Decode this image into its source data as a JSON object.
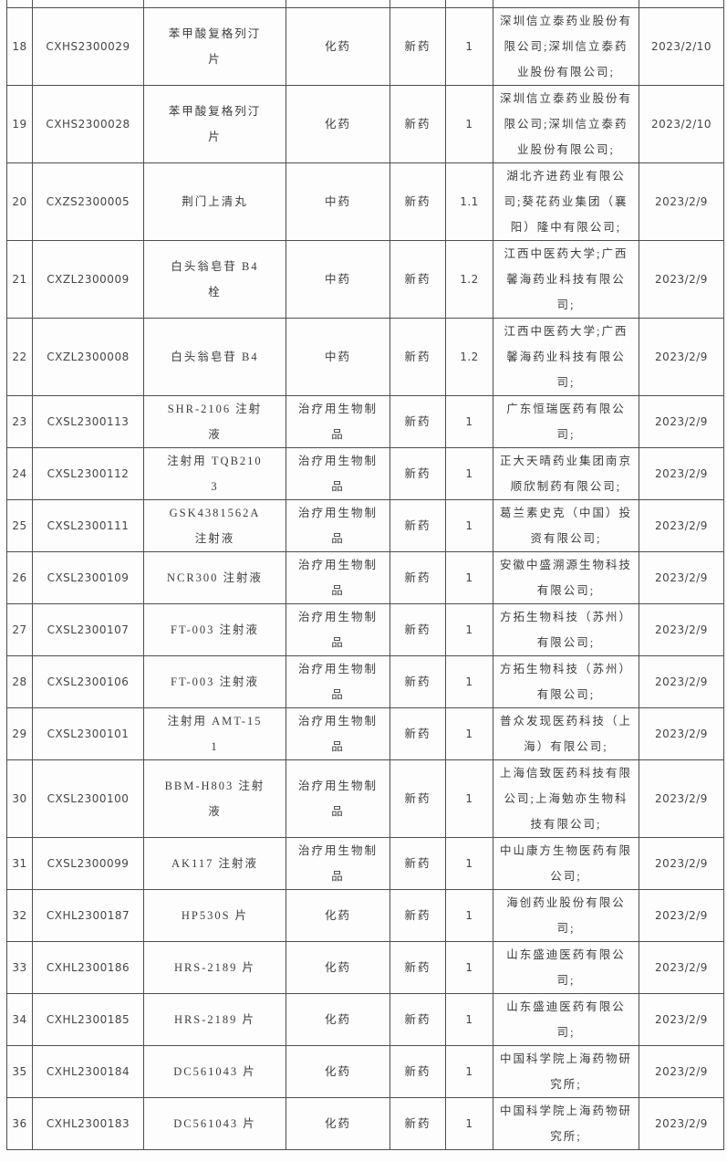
{
  "table": {
    "column_keys": [
      "seq",
      "acceptance_no",
      "drug_name",
      "drug_type",
      "application_type",
      "reg_class",
      "applicant",
      "date"
    ],
    "rows": [
      {
        "seq": "18",
        "acceptance_no": "CXHS2300029",
        "drug_name": "苯甲酸复格列汀片",
        "drug_type": "化药",
        "application_type": "新药",
        "reg_class": "1",
        "applicant": "深圳信立泰药业股份有限公司;深圳信立泰药业股份有限公司;",
        "date": "2023/2/10"
      },
      {
        "seq": "19",
        "acceptance_no": "CXHS2300028",
        "drug_name": "苯甲酸复格列汀片",
        "drug_type": "化药",
        "application_type": "新药",
        "reg_class": "1",
        "applicant": "深圳信立泰药业股份有限公司;深圳信立泰药业股份有限公司;",
        "date": "2023/2/10"
      },
      {
        "seq": "20",
        "acceptance_no": "CXZS2300005",
        "drug_name": "荆门上清丸",
        "drug_type": "中药",
        "application_type": "新药",
        "reg_class": "1.1",
        "applicant": "湖北齐进药业有限公司;葵花药业集团（襄阳）隆中有限公司;",
        "date": "2023/2/9"
      },
      {
        "seq": "21",
        "acceptance_no": "CXZL2300009",
        "drug_name": "白头翁皂苷 B4 栓",
        "drug_type": "中药",
        "application_type": "新药",
        "reg_class": "1.2",
        "applicant": "江西中医药大学;广西馨海药业科技有限公司;",
        "date": "2023/2/9"
      },
      {
        "seq": "22",
        "acceptance_no": "CXZL2300008",
        "drug_name": "白头翁皂苷 B4",
        "drug_type": "中药",
        "application_type": "新药",
        "reg_class": "1.2",
        "applicant": "江西中医药大学;广西馨海药业科技有限公司;",
        "date": "2023/2/9"
      },
      {
        "seq": "23",
        "acceptance_no": "CXSL2300113",
        "drug_name": "SHR-2106 注射液",
        "drug_type": "治疗用生物制品",
        "application_type": "新药",
        "reg_class": "1",
        "applicant": "广东恒瑞医药有限公司;",
        "date": "2023/2/9"
      },
      {
        "seq": "24",
        "acceptance_no": "CXSL2300112",
        "drug_name": "注射用 TQB2103",
        "drug_type": "治疗用生物制品",
        "application_type": "新药",
        "reg_class": "1",
        "applicant": "正大天晴药业集团南京顺欣制药有限公司;",
        "date": "2023/2/9"
      },
      {
        "seq": "25",
        "acceptance_no": "CXSL2300111",
        "drug_name": "GSK4381562A 注射液",
        "drug_type": "治疗用生物制品",
        "application_type": "新药",
        "reg_class": "1",
        "applicant": "葛兰素史克（中国）投资有限公司;",
        "date": "2023/2/9"
      },
      {
        "seq": "26",
        "acceptance_no": "CXSL2300109",
        "drug_name": "NCR300 注射液",
        "drug_type": "治疗用生物制品",
        "application_type": "新药",
        "reg_class": "1",
        "applicant": "安徽中盛溯源生物科技有限公司;",
        "date": "2023/2/9"
      },
      {
        "seq": "27",
        "acceptance_no": "CXSL2300107",
        "drug_name": "FT-003 注射液",
        "drug_type": "治疗用生物制品",
        "application_type": "新药",
        "reg_class": "1",
        "applicant": "方拓生物科技（苏州）有限公司;",
        "date": "2023/2/9"
      },
      {
        "seq": "28",
        "acceptance_no": "CXSL2300106",
        "drug_name": "FT-003 注射液",
        "drug_type": "治疗用生物制品",
        "application_type": "新药",
        "reg_class": "1",
        "applicant": "方拓生物科技（苏州）有限公司;",
        "date": "2023/2/9"
      },
      {
        "seq": "29",
        "acceptance_no": "CXSL2300101",
        "drug_name": "注射用 AMT-151",
        "drug_type": "治疗用生物制品",
        "application_type": "新药",
        "reg_class": "1",
        "applicant": "普众发现医药科技（上海）有限公司;",
        "date": "2023/2/9"
      },
      {
        "seq": "30",
        "acceptance_no": "CXSL2300100",
        "drug_name": "BBM-H803 注射液",
        "drug_type": "治疗用生物制品",
        "application_type": "新药",
        "reg_class": "1",
        "applicant": "上海信致医药科技有限公司;上海勉亦生物科技有限公司;",
        "date": "2023/2/9"
      },
      {
        "seq": "31",
        "acceptance_no": "CXSL2300099",
        "drug_name": "AK117 注射液",
        "drug_type": "治疗用生物制品",
        "application_type": "新药",
        "reg_class": "1",
        "applicant": "中山康方生物医药有限公司;",
        "date": "2023/2/9"
      },
      {
        "seq": "32",
        "acceptance_no": "CXHL2300187",
        "drug_name": "HP530S 片",
        "drug_type": "化药",
        "application_type": "新药",
        "reg_class": "1",
        "applicant": "海创药业股份有限公司;",
        "date": "2023/2/9"
      },
      {
        "seq": "33",
        "acceptance_no": "CXHL2300186",
        "drug_name": "HRS-2189 片",
        "drug_type": "化药",
        "application_type": "新药",
        "reg_class": "1",
        "applicant": "山东盛迪医药有限公司;",
        "date": "2023/2/9"
      },
      {
        "seq": "34",
        "acceptance_no": "CXHL2300185",
        "drug_name": "HRS-2189 片",
        "drug_type": "化药",
        "application_type": "新药",
        "reg_class": "1",
        "applicant": "山东盛迪医药有限公司;",
        "date": "2023/2/9"
      },
      {
        "seq": "35",
        "acceptance_no": "CXHL2300184",
        "drug_name": "DC561043 片",
        "drug_type": "化药",
        "application_type": "新药",
        "reg_class": "1",
        "applicant": "中国科学院上海药物研究所;",
        "date": "2023/2/9"
      },
      {
        "seq": "36",
        "acceptance_no": "CXHL2300183",
        "drug_name": "DC561043 片",
        "drug_type": "化药",
        "application_type": "新药",
        "reg_class": "1",
        "applicant": "中国科学院上海药物研究所;",
        "date": "2023/2/9"
      }
    ]
  }
}
